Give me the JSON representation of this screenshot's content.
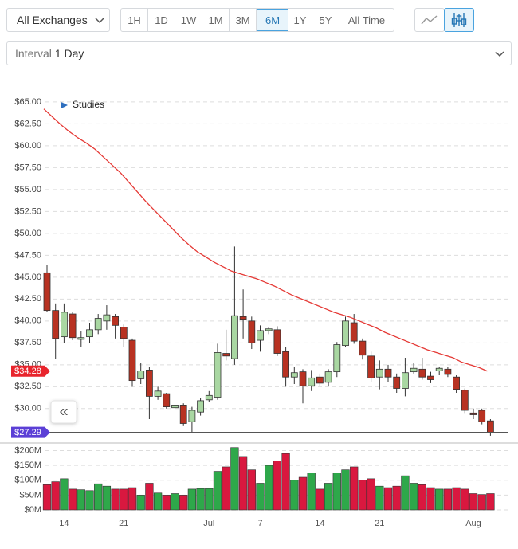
{
  "toolbar": {
    "exchange": "All Exchanges",
    "ranges": [
      "1H",
      "1D",
      "1W",
      "1M",
      "3M",
      "6M",
      "1Y",
      "5Y",
      "All Time"
    ],
    "active_range_index": 5,
    "interval_label": "Interval",
    "interval_value": "1 Day"
  },
  "studies": "Studies",
  "collapse_button": "«",
  "chart_data": {
    "type": "candlestick",
    "categories": [
      null,
      null,
      "14",
      null,
      null,
      null,
      null,
      null,
      null,
      "21",
      null,
      null,
      null,
      null,
      null,
      null,
      null,
      null,
      null,
      "Jul",
      null,
      null,
      null,
      null,
      null,
      "7",
      null,
      null,
      null,
      null,
      null,
      null,
      "14",
      null,
      null,
      null,
      null,
      null,
      null,
      "21",
      null,
      null,
      null,
      null,
      null,
      null,
      null,
      null,
      null,
      null,
      "Aug",
      null,
      null
    ],
    "open": [
      45.5,
      41.2,
      38.2,
      40.8,
      37.9,
      38.2,
      39.0,
      40.0,
      40.5,
      39.3,
      37.8,
      33.4,
      34.4,
      31.4,
      31.7,
      30.1,
      30.4,
      28.5,
      29.6,
      31.0,
      31.3,
      36.3,
      35.7,
      40.5,
      40.0,
      37.8,
      38.9,
      39.0,
      36.5,
      33.6,
      34.2,
      32.6,
      33.6,
      33.0,
      34.2,
      37.2,
      39.8,
      37.7,
      36.0,
      33.6,
      34.5,
      33.6,
      32.3,
      34.2,
      34.5,
      33.7,
      34.3,
      34.5,
      33.6,
      32.1,
      29.5,
      29.8,
      28.6
    ],
    "high": [
      46.4,
      42.0,
      42.0,
      41.0,
      38.8,
      39.8,
      40.8,
      41.8,
      40.8,
      39.6,
      38.0,
      35.2,
      34.8,
      32.5,
      31.8,
      30.6,
      30.6,
      30.2,
      31.2,
      32.0,
      37.4,
      39.0,
      48.5,
      43.6,
      40.5,
      39.5,
      39.3,
      39.4,
      37.0,
      34.8,
      34.5,
      34.4,
      34.0,
      34.5,
      37.6,
      40.5,
      40.8,
      38.0,
      36.5,
      35.5,
      35.0,
      34.0,
      35.8,
      35.2,
      35.8,
      34.2,
      34.8,
      34.8,
      33.8,
      32.3,
      30.0,
      30.0,
      28.8
    ],
    "low": [
      41.0,
      35.7,
      37.5,
      37.8,
      37.0,
      37.5,
      38.5,
      39.0,
      38.0,
      37.0,
      32.5,
      32.8,
      28.8,
      31.0,
      30.0,
      29.8,
      28.0,
      27.3,
      29.2,
      30.8,
      31.0,
      35.5,
      35.0,
      38.0,
      36.8,
      36.5,
      38.5,
      36.0,
      32.5,
      32.8,
      30.6,
      32.0,
      32.6,
      32.6,
      33.6,
      37.0,
      37.4,
      35.6,
      33.0,
      32.2,
      33.0,
      31.8,
      31.4,
      34.0,
      33.3,
      32.9,
      33.8,
      33.6,
      31.8,
      29.5,
      28.8,
      28.2,
      26.9
    ],
    "close": [
      41.2,
      38.0,
      41.0,
      38.1,
      38.1,
      39.0,
      40.3,
      40.7,
      39.5,
      38.0,
      33.2,
      34.3,
      31.4,
      32.0,
      30.2,
      30.4,
      28.3,
      29.8,
      30.9,
      31.5,
      36.4,
      36.0,
      40.6,
      40.2,
      37.5,
      38.9,
      39.1,
      36.3,
      33.6,
      34.1,
      32.6,
      33.5,
      32.9,
      34.2,
      37.3,
      40.0,
      37.7,
      36.1,
      33.5,
      34.5,
      33.6,
      32.3,
      34.1,
      34.6,
      33.6,
      33.3,
      34.6,
      33.9,
      32.2,
      29.8,
      29.3,
      28.5,
      27.29
    ],
    "up_color": "#a9d7a2",
    "down_color": "#b83222",
    "ylim": [
      26.8,
      65.9
    ],
    "yticks": [
      {
        "value": 30,
        "label": "$30.00"
      },
      {
        "value": 32.5,
        "label": "$32.50"
      },
      {
        "value": 35,
        "label": "$35.00"
      },
      {
        "value": 37.5,
        "label": "$37.50"
      },
      {
        "value": 40,
        "label": "$40.00"
      },
      {
        "value": 42.5,
        "label": "$42.50"
      },
      {
        "value": 45,
        "label": "$45.00"
      },
      {
        "value": 47.5,
        "label": "$47.50"
      },
      {
        "value": 50,
        "label": "$50.00"
      },
      {
        "value": 52.5,
        "label": "$52.50"
      },
      {
        "value": 55,
        "label": "$55.00"
      },
      {
        "value": 57.5,
        "label": "$57.50"
      },
      {
        "value": 60,
        "label": "$60.00"
      },
      {
        "value": 62.5,
        "label": "$62.50"
      },
      {
        "value": 65,
        "label": "$65.00"
      }
    ],
    "grid": true,
    "line": {
      "color": "#e53935",
      "values": [
        64.2,
        63.3,
        62.4,
        61.6,
        60.9,
        60.3,
        59.6,
        58.7,
        57.8,
        56.9,
        55.8,
        54.7,
        53.6,
        52.6,
        51.6,
        50.6,
        49.6,
        48.7,
        47.9,
        47.3,
        46.7,
        46.2,
        45.7,
        45.4,
        45.1,
        44.8,
        44.4,
        44.0,
        43.5,
        43.0,
        42.6,
        42.2,
        41.8,
        41.4,
        41.0,
        40.7,
        40.4,
        40.0,
        39.6,
        39.2,
        38.7,
        38.3,
        37.9,
        37.5,
        37.1,
        36.7,
        36.4,
        36.1,
        35.8,
        35.3,
        35.0,
        34.7,
        34.28
      ]
    },
    "price_tags": [
      {
        "value": 34.28,
        "label": "$34.28",
        "color": "#e8252d"
      },
      {
        "value": 27.29,
        "label": "$27.29",
        "color": "#5b3fd6"
      }
    ],
    "volume": {
      "up_color": "#2ea84a",
      "down_color": "#d9183f",
      "values": [
        85,
        95,
        105,
        70,
        68,
        65,
        88,
        80,
        70,
        70,
        75,
        50,
        90,
        57,
        50,
        55,
        50,
        70,
        72,
        72,
        130,
        145,
        210,
        180,
        135,
        90,
        150,
        165,
        190,
        100,
        110,
        125,
        70,
        90,
        125,
        135,
        145,
        100,
        105,
        80,
        75,
        80,
        115,
        90,
        85,
        75,
        70,
        70,
        75,
        70,
        55,
        52,
        55
      ],
      "ylim": [
        0,
        220
      ],
      "yticks": [
        {
          "value": 0,
          "label": "$0M"
        },
        {
          "value": 50,
          "label": "$50M"
        },
        {
          "value": 100,
          "label": "$100M"
        },
        {
          "value": 150,
          "label": "$150M"
        },
        {
          "value": 200,
          "label": "$200M"
        }
      ]
    }
  }
}
